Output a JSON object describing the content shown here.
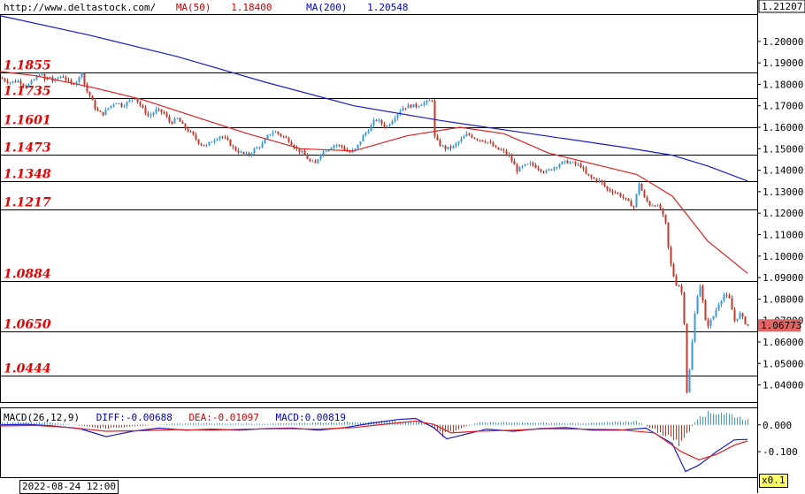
{
  "header": {
    "url": "http://www.deltastock.com/",
    "ma50_label": "MA(50)",
    "ma50_value": "1.18400",
    "ma200_label": "MA(200)",
    "ma200_value": "1.20548"
  },
  "macd_header": {
    "name": "MACD(26,12,9)",
    "diff": "DIFF:-0.00688",
    "dea": "DEA:-0.01097",
    "macd": "MACD:0.00819"
  },
  "date_label": "2022-08-24 12:00",
  "scale_label": "x0.1",
  "colors": {
    "bull": "#3a9ad9",
    "bear": "#c0392b",
    "ma50": "#e02020",
    "ma200": "#1a1acc",
    "level": "#e60000"
  },
  "chart_data": [
    {
      "type": "candlestick",
      "title": "",
      "ylim": [
        1.032,
        1.2127
      ],
      "y_ticks": [
        "1.20000",
        "1.19000",
        "1.18000",
        "1.17000",
        "1.16000",
        "1.15000",
        "1.14000",
        "1.13000",
        "1.12000",
        "1.11000",
        "1.10000",
        "1.09000",
        "1.08000",
        "1.07000",
        "1.06000",
        "1.05000",
        "1.04000"
      ],
      "top_price_label": "1.21207",
      "current_price": "1.06773",
      "levels": [
        {
          "label": "1.1855",
          "value": 1.1855
        },
        {
          "label": "1.1735",
          "value": 1.1735
        },
        {
          "label": "1.1601",
          "value": 1.1601
        },
        {
          "label": "1.1473",
          "value": 1.1473
        },
        {
          "label": "1.1348",
          "value": 1.1348
        },
        {
          "label": "1.1217",
          "value": 1.1217
        },
        {
          "label": "1.0884",
          "value": 1.0884
        },
        {
          "label": "1.0650",
          "value": 1.065
        },
        {
          "label": "1.0444",
          "value": 1.0444
        }
      ],
      "close_path": [
        [
          0,
          1.183
        ],
        [
          10,
          1.181
        ],
        [
          20,
          1.1815
        ],
        [
          30,
          1.179
        ],
        [
          40,
          1.183
        ],
        [
          45,
          1.1855
        ],
        [
          50,
          1.182
        ],
        [
          55,
          1.184
        ],
        [
          60,
          1.181
        ],
        [
          65,
          1.183
        ],
        [
          70,
          1.184
        ],
        [
          80,
          1.18
        ],
        [
          88,
          1.182
        ],
        [
          92,
          1.186
        ],
        [
          96,
          1.178
        ],
        [
          102,
          1.174
        ],
        [
          108,
          1.168
        ],
        [
          115,
          1.166
        ],
        [
          122,
          1.169
        ],
        [
          130,
          1.172
        ],
        [
          138,
          1.17
        ],
        [
          145,
          1.172
        ],
        [
          152,
          1.174
        ],
        [
          160,
          1.169
        ],
        [
          168,
          1.165
        ],
        [
          176,
          1.168
        ],
        [
          184,
          1.167
        ],
        [
          192,
          1.162
        ],
        [
          200,
          1.164
        ],
        [
          208,
          1.16
        ],
        [
          216,
          1.157
        ],
        [
          224,
          1.153
        ],
        [
          232,
          1.151
        ],
        [
          240,
          1.154
        ],
        [
          248,
          1.156
        ],
        [
          256,
          1.154
        ],
        [
          264,
          1.15
        ],
        [
          272,
          1.148
        ],
        [
          280,
          1.147
        ],
        [
          288,
          1.15
        ],
        [
          296,
          1.152
        ],
        [
          304,
          1.157
        ],
        [
          310,
          1.158
        ],
        [
          318,
          1.156
        ],
        [
          326,
          1.154
        ],
        [
          334,
          1.15
        ],
        [
          342,
          1.148
        ],
        [
          350,
          1.144
        ],
        [
          356,
          1.143
        ],
        [
          362,
          1.148
        ],
        [
          370,
          1.15
        ],
        [
          378,
          1.152
        ],
        [
          386,
          1.151
        ],
        [
          394,
          1.148
        ],
        [
          402,
          1.15
        ],
        [
          410,
          1.156
        ],
        [
          418,
          1.16
        ],
        [
          424,
          1.164
        ],
        [
          430,
          1.162
        ],
        [
          436,
          1.16
        ],
        [
          442,
          1.163
        ],
        [
          448,
          1.166
        ],
        [
          454,
          1.169
        ],
        [
          462,
          1.17
        ],
        [
          470,
          1.17
        ],
        [
          476,
          1.171
        ],
        [
          484,
          1.172
        ],
        [
          488,
          1.173
        ],
        [
          490,
          1.156
        ],
        [
          496,
          1.152
        ],
        [
          504,
          1.15
        ],
        [
          512,
          1.151
        ],
        [
          520,
          1.154
        ],
        [
          528,
          1.157
        ],
        [
          536,
          1.155
        ],
        [
          544,
          1.154
        ],
        [
          552,
          1.153
        ],
        [
          560,
          1.15
        ],
        [
          568,
          1.149
        ],
        [
          576,
          1.146
        ],
        [
          584,
          1.14
        ],
        [
          592,
          1.142
        ],
        [
          600,
          1.143
        ],
        [
          608,
          1.141
        ],
        [
          616,
          1.139
        ],
        [
          624,
          1.141
        ],
        [
          632,
          1.143
        ],
        [
          640,
          1.144
        ],
        [
          648,
          1.143
        ],
        [
          656,
          1.142
        ],
        [
          662,
          1.138
        ],
        [
          670,
          1.136
        ],
        [
          678,
          1.135
        ],
        [
          686,
          1.131
        ],
        [
          694,
          1.13
        ],
        [
          702,
          1.128
        ],
        [
          710,
          1.125
        ],
        [
          716,
          1.123
        ],
        [
          722,
          1.134
        ],
        [
          728,
          1.127
        ],
        [
          734,
          1.124
        ],
        [
          740,
          1.124
        ],
        [
          746,
          1.122
        ],
        [
          752,
          1.115
        ],
        [
          756,
          1.1
        ],
        [
          760,
          1.092
        ],
        [
          764,
          1.087
        ],
        [
          768,
          1.086
        ],
        [
          772,
          1.08
        ],
        [
          776,
          1.037
        ],
        [
          780,
          1.05
        ],
        [
          784,
          1.07
        ],
        [
          788,
          1.082
        ],
        [
          792,
          1.088
        ],
        [
          796,
          1.07
        ],
        [
          800,
          1.068
        ],
        [
          806,
          1.072
        ],
        [
          812,
          1.078
        ],
        [
          818,
          1.082
        ],
        [
          824,
          1.08
        ],
        [
          830,
          1.07
        ],
        [
          836,
          1.073
        ],
        [
          842,
          1.069
        ],
        [
          845,
          1.0677
        ]
      ],
      "ma50": [
        [
          0,
          1.186
        ],
        [
          40,
          1.184
        ],
        [
          100,
          1.179
        ],
        [
          160,
          1.173
        ],
        [
          220,
          1.165
        ],
        [
          280,
          1.157
        ],
        [
          340,
          1.15
        ],
        [
          400,
          1.149
        ],
        [
          460,
          1.156
        ],
        [
          520,
          1.16
        ],
        [
          570,
          1.157
        ],
        [
          620,
          1.148
        ],
        [
          680,
          1.142
        ],
        [
          720,
          1.138
        ],
        [
          760,
          1.128
        ],
        [
          800,
          1.107
        ],
        [
          845,
          1.092
        ]
      ],
      "ma200": [
        [
          0,
          1.212
        ],
        [
          100,
          1.203
        ],
        [
          200,
          1.193
        ],
        [
          300,
          1.181
        ],
        [
          400,
          1.17
        ],
        [
          500,
          1.163
        ],
        [
          600,
          1.157
        ],
        [
          700,
          1.151
        ],
        [
          760,
          1.147
        ],
        [
          800,
          1.142
        ],
        [
          845,
          1.135
        ]
      ]
    },
    {
      "type": "macd",
      "params": "26,12,9",
      "y_ticks": [
        "0.000",
        "-0.100"
      ],
      "ylim": [
        -0.195,
        0.065
      ],
      "diff_path": [
        [
          0,
          0.0
        ],
        [
          30,
          0.002
        ],
        [
          60,
          -0.004
        ],
        [
          90,
          -0.014
        ],
        [
          120,
          -0.044
        ],
        [
          150,
          -0.024
        ],
        [
          180,
          -0.012
        ],
        [
          210,
          -0.02
        ],
        [
          240,
          -0.016
        ],
        [
          270,
          -0.02
        ],
        [
          300,
          -0.014
        ],
        [
          330,
          -0.012
        ],
        [
          360,
          -0.02
        ],
        [
          390,
          -0.01
        ],
        [
          420,
          0.006
        ],
        [
          450,
          0.02
        ],
        [
          470,
          0.024
        ],
        [
          490,
          -0.01
        ],
        [
          505,
          -0.052
        ],
        [
          520,
          -0.04
        ],
        [
          550,
          -0.016
        ],
        [
          580,
          -0.024
        ],
        [
          610,
          -0.014
        ],
        [
          640,
          -0.01
        ],
        [
          670,
          -0.02
        ],
        [
          700,
          -0.02
        ],
        [
          730,
          -0.012
        ],
        [
          760,
          -0.07
        ],
        [
          775,
          -0.174
        ],
        [
          790,
          -0.15
        ],
        [
          810,
          -0.1
        ],
        [
          830,
          -0.056
        ],
        [
          845,
          -0.054
        ]
      ],
      "dea_path": [
        [
          0,
          -0.004
        ],
        [
          40,
          -0.002
        ],
        [
          80,
          -0.01
        ],
        [
          120,
          -0.024
        ],
        [
          160,
          -0.022
        ],
        [
          200,
          -0.018
        ],
        [
          240,
          -0.02
        ],
        [
          280,
          -0.016
        ],
        [
          320,
          -0.014
        ],
        [
          360,
          -0.016
        ],
        [
          400,
          -0.01
        ],
        [
          440,
          0.004
        ],
        [
          470,
          0.014
        ],
        [
          490,
          0.002
        ],
        [
          510,
          -0.03
        ],
        [
          540,
          -0.024
        ],
        [
          580,
          -0.02
        ],
        [
          620,
          -0.014
        ],
        [
          660,
          -0.016
        ],
        [
          700,
          -0.018
        ],
        [
          740,
          -0.03
        ],
        [
          770,
          -0.1
        ],
        [
          790,
          -0.13
        ],
        [
          810,
          -0.11
        ],
        [
          830,
          -0.076
        ],
        [
          845,
          -0.06
        ]
      ],
      "hist_profile": [
        [
          0,
          0.01
        ],
        [
          60,
          0.008
        ],
        [
          120,
          -0.014
        ],
        [
          200,
          0.006
        ],
        [
          300,
          0.004
        ],
        [
          380,
          0.01
        ],
        [
          440,
          0.014
        ],
        [
          480,
          0.008
        ],
        [
          500,
          -0.04
        ],
        [
          540,
          0.01
        ],
        [
          600,
          0.008
        ],
        [
          660,
          0.006
        ],
        [
          720,
          0.014
        ],
        [
          745,
          -0.03
        ],
        [
          770,
          -0.074
        ],
        [
          790,
          0.04
        ],
        [
          815,
          0.05
        ],
        [
          845,
          0.02
        ]
      ]
    }
  ]
}
